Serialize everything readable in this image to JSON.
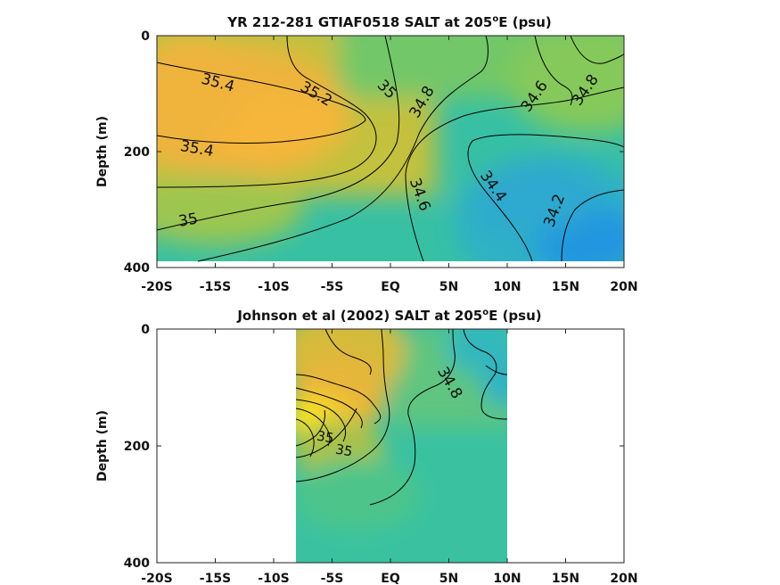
{
  "chart_data": [
    {
      "type": "heatmap",
      "title": "YR 212-281 GTIAF0518 SALT at 205",
      "title_sup": "o",
      "title_suffix": "E (psu)",
      "ylabel": "Depth (m)",
      "xticks": [
        "-20S",
        "-15S",
        "-10S",
        "-5S",
        "EQ",
        "5N",
        "10N",
        "15N",
        "20N"
      ],
      "yticks": [
        "0",
        "200",
        "400"
      ],
      "x_range": [
        -20,
        20
      ],
      "y_range": [
        0,
        400
      ],
      "y_reversed": true,
      "data_extent": {
        "lat": [
          -20,
          20
        ],
        "depth": [
          0,
          390
        ]
      },
      "contour_labels": [
        {
          "text": "35.4",
          "lat": -16.6,
          "depth": 85,
          "angle": 15
        },
        {
          "text": "35.2",
          "lat": -6.7,
          "depth": 100,
          "angle": 30
        },
        {
          "text": "35",
          "lat": -0.5,
          "depth": 90,
          "angle": 45
        },
        {
          "text": "34.8",
          "lat": 3.2,
          "depth": 105,
          "angle": -60
        },
        {
          "text": "34.6",
          "lat": 13.7,
          "depth": 100,
          "angle": -55
        },
        {
          "text": "34.8",
          "lat": 18.3,
          "depth": 90,
          "angle": -55
        },
        {
          "text": "35.4",
          "lat": -17.2,
          "depth": 195,
          "angle": 10
        },
        {
          "text": "34.6",
          "lat": 2.6,
          "depth": 275,
          "angle": 70
        },
        {
          "text": "34.4",
          "lat": 9.0,
          "depth": 260,
          "angle": 55
        },
        {
          "text": "34.2",
          "lat": 15.3,
          "depth": 300,
          "angle": -70
        },
        {
          "text": "35",
          "lat": -18.5,
          "depth": 315,
          "angle": -10
        }
      ],
      "colormap": "parula",
      "salinity_range_psu": [
        34.1,
        35.6
      ]
    },
    {
      "type": "heatmap",
      "title": "Johnson et al (2002) SALT at 205",
      "title_sup": "o",
      "title_suffix": "E (psu)",
      "ylabel": "Depth (m)",
      "xticks": [
        "-20S",
        "-15S",
        "-10S",
        "-5S",
        "EQ",
        "5N",
        "10N",
        "15N",
        "20N"
      ],
      "yticks": [
        "0",
        "200",
        "400"
      ],
      "x_range": [
        -20,
        20
      ],
      "y_range": [
        0,
        400
      ],
      "y_reversed": true,
      "data_extent": {
        "lat": [
          -8,
          10
        ],
        "depth": [
          0,
          400
        ]
      },
      "contour_labels": [
        {
          "text": "34.8",
          "lat": 4.8,
          "depth": 95,
          "angle": 60
        },
        {
          "text": "35",
          "lat": -4.2,
          "depth": 205,
          "angle": 10
        },
        {
          "text": "35",
          "lat": -3.6,
          "depth": 215,
          "angle": 10
        }
      ],
      "colormap": "parula",
      "salinity_range_psu": [
        34.1,
        35.9
      ]
    }
  ]
}
